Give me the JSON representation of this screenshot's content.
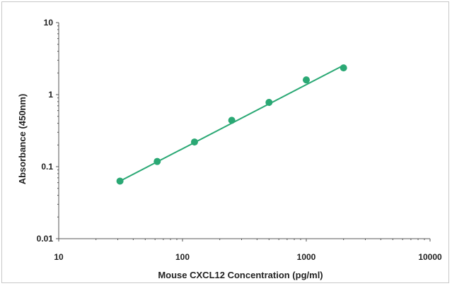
{
  "chart_data": {
    "type": "scatter",
    "title": "",
    "xlabel": "Mouse CXCL12 Concentration (pg/ml)",
    "ylabel": "Absorbance (450nm)",
    "x_scale": "log",
    "y_scale": "log",
    "xlim": [
      10,
      10000
    ],
    "ylim": [
      0.01,
      10
    ],
    "x_ticks": [
      10,
      100,
      1000,
      10000
    ],
    "x_tick_labels": [
      "10",
      "100",
      "1000",
      "10000"
    ],
    "y_ticks": [
      0.01,
      0.1,
      1,
      10
    ],
    "y_tick_labels": [
      "0.01",
      "0.1",
      "1",
      "10"
    ],
    "grid": false,
    "legend": "none",
    "series": [
      {
        "points": [
          {
            "x": 31.25,
            "y": 0.063
          },
          {
            "x": 62.5,
            "y": 0.118
          },
          {
            "x": 125,
            "y": 0.22
          },
          {
            "x": 250,
            "y": 0.44
          },
          {
            "x": 500,
            "y": 0.78
          },
          {
            "x": 1000,
            "y": 1.6
          },
          {
            "x": 2000,
            "y": 2.35
          }
        ],
        "fit_line": {
          "x": [
            31.25,
            2000
          ],
          "y": [
            0.063,
            2.55
          ]
        },
        "color": "#2aa874"
      }
    ]
  }
}
